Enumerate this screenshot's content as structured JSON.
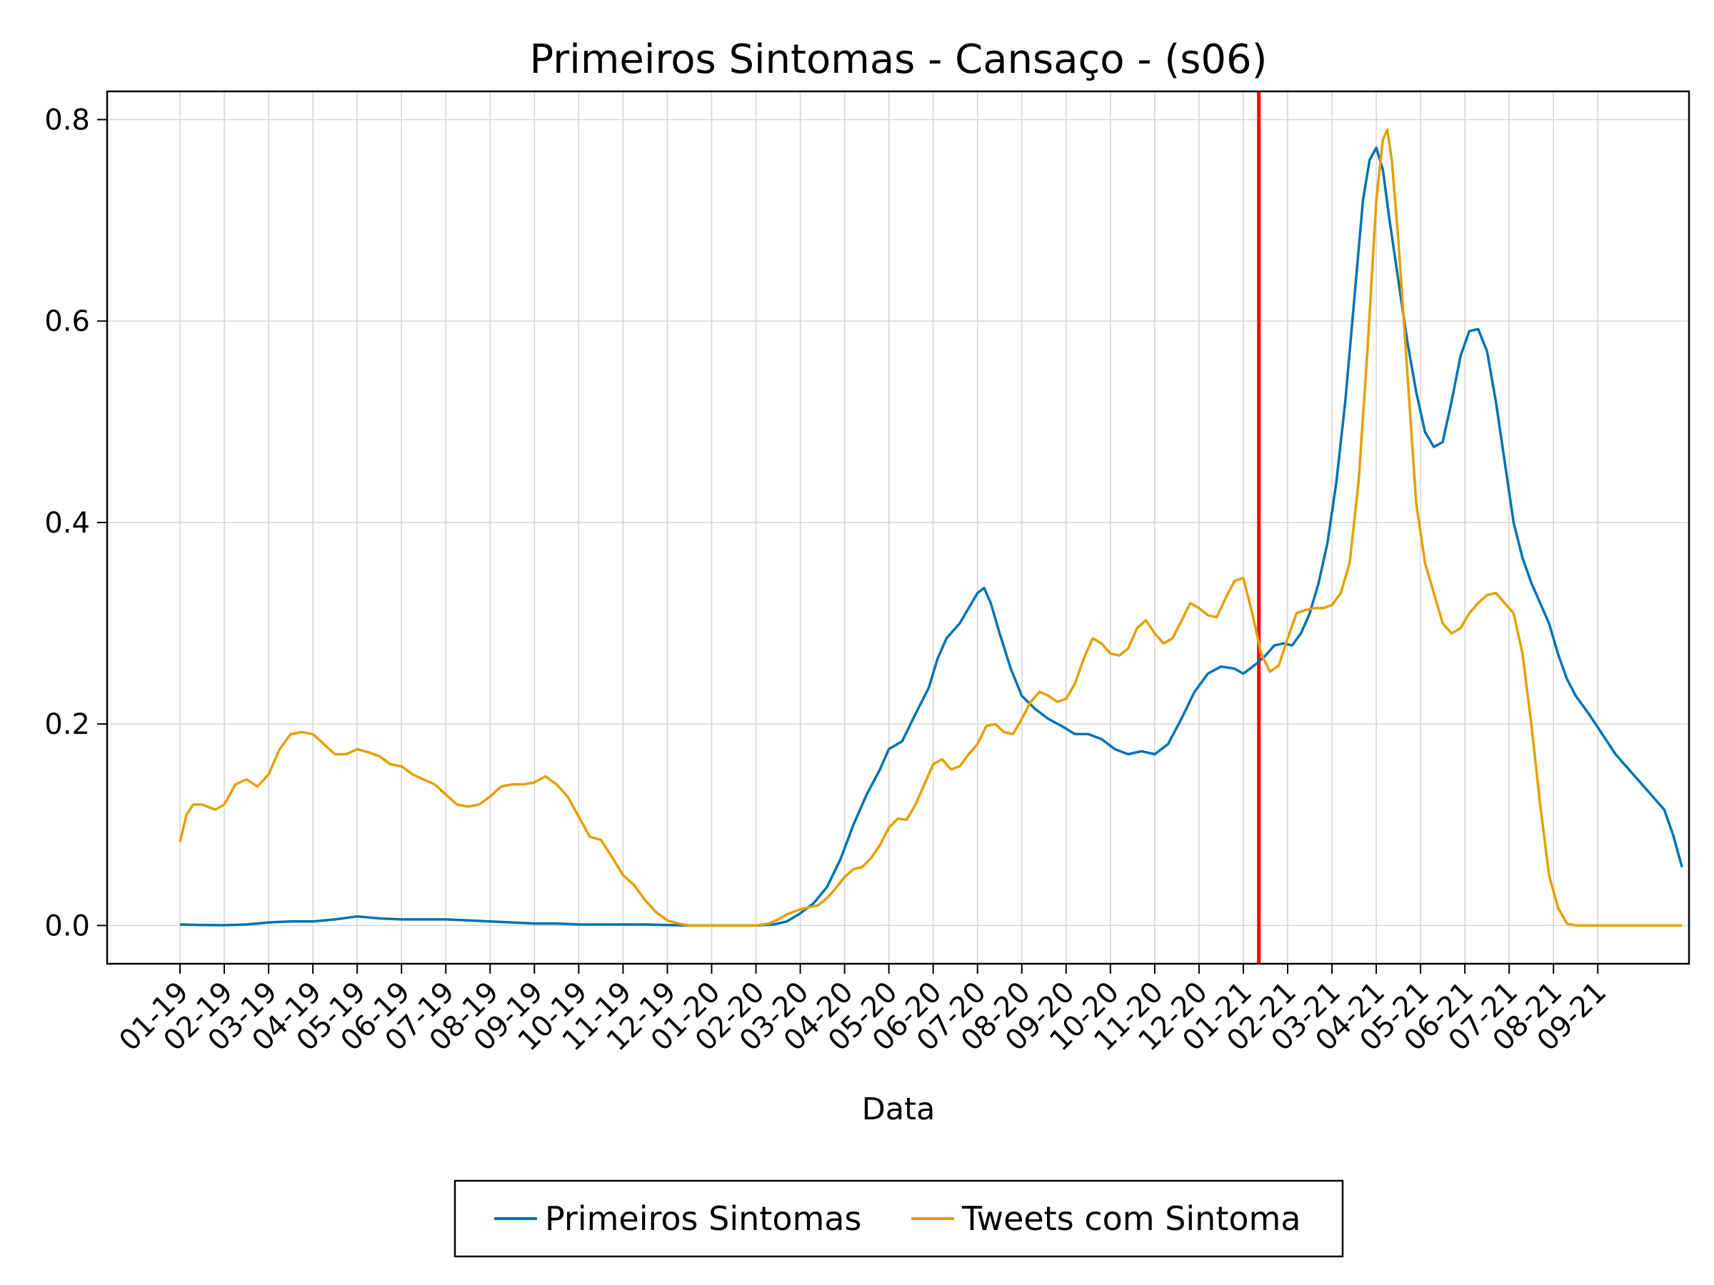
{
  "chart_data": {
    "type": "line",
    "title": "Primeiros Sintomas - Cansaço - (s06)",
    "xlabel": "Data",
    "ylabel": "",
    "x_tick_labels": [
      "01-19",
      "02-19",
      "03-19",
      "04-19",
      "05-19",
      "06-19",
      "07-19",
      "08-19",
      "09-19",
      "10-19",
      "11-19",
      "12-19",
      "01-20",
      "02-20",
      "03-20",
      "04-20",
      "05-20",
      "06-20",
      "07-20",
      "08-20",
      "09-20",
      "10-20",
      "11-20",
      "12-20",
      "01-21",
      "02-21",
      "03-21",
      "04-21",
      "05-21",
      "06-21",
      "07-21",
      "08-21",
      "09-21"
    ],
    "y_ticks": [
      "0.0",
      "0.2",
      "0.4",
      "0.6",
      "0.8"
    ],
    "ylim": [
      -0.038,
      0.828
    ],
    "grid": true,
    "legend_position": "bottom-center",
    "reference_line": {
      "x_month_index": 24.35,
      "color": "#ff0000"
    },
    "series": [
      {
        "name": "Primeiros Sintomas",
        "color": "#0072b2",
        "points": [
          [
            0.0,
            0.001
          ],
          [
            0.5,
            0.0005
          ],
          [
            1.0,
            0.0003
          ],
          [
            1.5,
            0.001
          ],
          [
            2.0,
            0.003
          ],
          [
            2.5,
            0.004
          ],
          [
            3.0,
            0.004
          ],
          [
            3.5,
            0.006
          ],
          [
            4.0,
            0.009
          ],
          [
            4.5,
            0.007
          ],
          [
            5.0,
            0.006
          ],
          [
            5.5,
            0.006
          ],
          [
            6.0,
            0.006
          ],
          [
            6.5,
            0.005
          ],
          [
            7.0,
            0.004
          ],
          [
            7.5,
            0.003
          ],
          [
            8.0,
            0.002
          ],
          [
            8.5,
            0.002
          ],
          [
            9.0,
            0.001
          ],
          [
            9.5,
            0.001
          ],
          [
            10.0,
            0.001
          ],
          [
            10.5,
            0.001
          ],
          [
            11.0,
            0.0005
          ],
          [
            11.5,
            0.0
          ],
          [
            12.0,
            0.0
          ],
          [
            12.5,
            0.0
          ],
          [
            13.0,
            0.0
          ],
          [
            13.4,
            0.001
          ],
          [
            13.7,
            0.004
          ],
          [
            14.0,
            0.012
          ],
          [
            14.3,
            0.022
          ],
          [
            14.6,
            0.038
          ],
          [
            14.9,
            0.065
          ],
          [
            15.2,
            0.1
          ],
          [
            15.5,
            0.13
          ],
          [
            15.8,
            0.155
          ],
          [
            16.0,
            0.175
          ],
          [
            16.3,
            0.183
          ],
          [
            16.6,
            0.21
          ],
          [
            16.9,
            0.236
          ],
          [
            17.1,
            0.265
          ],
          [
            17.3,
            0.285
          ],
          [
            17.6,
            0.3
          ],
          [
            17.8,
            0.315
          ],
          [
            18.0,
            0.33
          ],
          [
            18.15,
            0.335
          ],
          [
            18.3,
            0.32
          ],
          [
            18.5,
            0.29
          ],
          [
            18.75,
            0.255
          ],
          [
            19.0,
            0.228
          ],
          [
            19.3,
            0.215
          ],
          [
            19.6,
            0.205
          ],
          [
            19.9,
            0.198
          ],
          [
            20.2,
            0.19
          ],
          [
            20.5,
            0.19
          ],
          [
            20.8,
            0.185
          ],
          [
            21.1,
            0.175
          ],
          [
            21.4,
            0.17
          ],
          [
            21.7,
            0.173
          ],
          [
            22.0,
            0.17
          ],
          [
            22.3,
            0.18
          ],
          [
            22.6,
            0.205
          ],
          [
            22.9,
            0.232
          ],
          [
            23.2,
            0.25
          ],
          [
            23.5,
            0.257
          ],
          [
            23.8,
            0.255
          ],
          [
            24.0,
            0.25
          ],
          [
            24.3,
            0.26
          ],
          [
            24.5,
            0.268
          ],
          [
            24.7,
            0.278
          ],
          [
            24.9,
            0.28
          ],
          [
            25.1,
            0.278
          ],
          [
            25.3,
            0.29
          ],
          [
            25.5,
            0.31
          ],
          [
            25.7,
            0.34
          ],
          [
            25.9,
            0.38
          ],
          [
            26.1,
            0.44
          ],
          [
            26.3,
            0.52
          ],
          [
            26.5,
            0.62
          ],
          [
            26.7,
            0.72
          ],
          [
            26.85,
            0.76
          ],
          [
            27.0,
            0.772
          ],
          [
            27.15,
            0.75
          ],
          [
            27.3,
            0.7
          ],
          [
            27.5,
            0.64
          ],
          [
            27.7,
            0.58
          ],
          [
            27.9,
            0.53
          ],
          [
            28.1,
            0.49
          ],
          [
            28.3,
            0.475
          ],
          [
            28.5,
            0.48
          ],
          [
            28.7,
            0.52
          ],
          [
            28.9,
            0.565
          ],
          [
            29.1,
            0.59
          ],
          [
            29.3,
            0.592
          ],
          [
            29.5,
            0.57
          ],
          [
            29.7,
            0.52
          ],
          [
            29.9,
            0.46
          ],
          [
            30.1,
            0.4
          ],
          [
            30.3,
            0.365
          ],
          [
            30.5,
            0.34
          ],
          [
            30.7,
            0.32
          ],
          [
            30.9,
            0.3
          ],
          [
            31.1,
            0.27
          ],
          [
            31.3,
            0.245
          ],
          [
            31.5,
            0.228
          ],
          [
            31.8,
            0.21
          ],
          [
            32.1,
            0.19
          ],
          [
            32.4,
            0.17
          ],
          [
            32.7,
            0.155
          ],
          [
            33.0,
            0.14
          ],
          [
            33.3,
            0.125
          ],
          [
            33.5,
            0.115
          ],
          [
            33.7,
            0.09
          ],
          [
            33.9,
            0.058
          ]
        ]
      },
      {
        "name": "Tweets com Sintoma",
        "color": "#e69f00",
        "points": [
          [
            0.0,
            0.083
          ],
          [
            0.15,
            0.11
          ],
          [
            0.3,
            0.12
          ],
          [
            0.5,
            0.12
          ],
          [
            0.8,
            0.115
          ],
          [
            1.0,
            0.12
          ],
          [
            1.25,
            0.14
          ],
          [
            1.5,
            0.145
          ],
          [
            1.75,
            0.138
          ],
          [
            2.0,
            0.15
          ],
          [
            2.25,
            0.175
          ],
          [
            2.5,
            0.19
          ],
          [
            2.75,
            0.192
          ],
          [
            3.0,
            0.19
          ],
          [
            3.25,
            0.18
          ],
          [
            3.5,
            0.17
          ],
          [
            3.75,
            0.17
          ],
          [
            4.0,
            0.175
          ],
          [
            4.25,
            0.172
          ],
          [
            4.5,
            0.168
          ],
          [
            4.75,
            0.16
          ],
          [
            5.0,
            0.158
          ],
          [
            5.25,
            0.15
          ],
          [
            5.5,
            0.145
          ],
          [
            5.75,
            0.14
          ],
          [
            6.0,
            0.13
          ],
          [
            6.25,
            0.12
          ],
          [
            6.5,
            0.118
          ],
          [
            6.75,
            0.12
          ],
          [
            7.0,
            0.128
          ],
          [
            7.25,
            0.138
          ],
          [
            7.5,
            0.14
          ],
          [
            7.75,
            0.14
          ],
          [
            8.0,
            0.142
          ],
          [
            8.25,
            0.148
          ],
          [
            8.5,
            0.14
          ],
          [
            8.75,
            0.128
          ],
          [
            9.0,
            0.108
          ],
          [
            9.25,
            0.088
          ],
          [
            9.5,
            0.085
          ],
          [
            9.75,
            0.068
          ],
          [
            10.0,
            0.05
          ],
          [
            10.25,
            0.04
          ],
          [
            10.5,
            0.025
          ],
          [
            10.75,
            0.013
          ],
          [
            11.0,
            0.005
          ],
          [
            11.25,
            0.002
          ],
          [
            11.5,
            0.0
          ],
          [
            12.0,
            0.0
          ],
          [
            12.5,
            0.0
          ],
          [
            13.0,
            0.0
          ],
          [
            13.3,
            0.002
          ],
          [
            13.5,
            0.006
          ],
          [
            13.7,
            0.011
          ],
          [
            14.0,
            0.016
          ],
          [
            14.2,
            0.018
          ],
          [
            14.4,
            0.02
          ],
          [
            14.6,
            0.027
          ],
          [
            14.8,
            0.037
          ],
          [
            15.0,
            0.048
          ],
          [
            15.2,
            0.056
          ],
          [
            15.4,
            0.058
          ],
          [
            15.6,
            0.067
          ],
          [
            15.8,
            0.08
          ],
          [
            16.0,
            0.097
          ],
          [
            16.2,
            0.106
          ],
          [
            16.4,
            0.105
          ],
          [
            16.6,
            0.12
          ],
          [
            16.8,
            0.14
          ],
          [
            17.0,
            0.16
          ],
          [
            17.2,
            0.165
          ],
          [
            17.4,
            0.155
          ],
          [
            17.6,
            0.158
          ],
          [
            17.8,
            0.17
          ],
          [
            18.0,
            0.18
          ],
          [
            18.2,
            0.198
          ],
          [
            18.4,
            0.2
          ],
          [
            18.6,
            0.192
          ],
          [
            18.8,
            0.19
          ],
          [
            19.0,
            0.205
          ],
          [
            19.2,
            0.222
          ],
          [
            19.4,
            0.232
          ],
          [
            19.6,
            0.228
          ],
          [
            19.8,
            0.222
          ],
          [
            20.0,
            0.225
          ],
          [
            20.2,
            0.24
          ],
          [
            20.4,
            0.265
          ],
          [
            20.6,
            0.285
          ],
          [
            20.8,
            0.28
          ],
          [
            21.0,
            0.27
          ],
          [
            21.2,
            0.268
          ],
          [
            21.4,
            0.275
          ],
          [
            21.6,
            0.295
          ],
          [
            21.8,
            0.303
          ],
          [
            22.0,
            0.29
          ],
          [
            22.2,
            0.28
          ],
          [
            22.4,
            0.285
          ],
          [
            22.6,
            0.302
          ],
          [
            22.8,
            0.32
          ],
          [
            23.0,
            0.315
          ],
          [
            23.2,
            0.308
          ],
          [
            23.4,
            0.306
          ],
          [
            23.6,
            0.325
          ],
          [
            23.8,
            0.342
          ],
          [
            24.0,
            0.345
          ],
          [
            24.2,
            0.31
          ],
          [
            24.4,
            0.27
          ],
          [
            24.6,
            0.252
          ],
          [
            24.8,
            0.258
          ],
          [
            25.0,
            0.285
          ],
          [
            25.2,
            0.31
          ],
          [
            25.4,
            0.313
          ],
          [
            25.6,
            0.315
          ],
          [
            25.8,
            0.315
          ],
          [
            26.0,
            0.318
          ],
          [
            26.2,
            0.33
          ],
          [
            26.4,
            0.36
          ],
          [
            26.6,
            0.44
          ],
          [
            26.8,
            0.57
          ],
          [
            27.0,
            0.72
          ],
          [
            27.15,
            0.78
          ],
          [
            27.25,
            0.79
          ],
          [
            27.35,
            0.76
          ],
          [
            27.5,
            0.68
          ],
          [
            27.7,
            0.55
          ],
          [
            27.9,
            0.42
          ],
          [
            28.1,
            0.36
          ],
          [
            28.3,
            0.33
          ],
          [
            28.5,
            0.3
          ],
          [
            28.7,
            0.29
          ],
          [
            28.9,
            0.295
          ],
          [
            29.1,
            0.31
          ],
          [
            29.3,
            0.32
          ],
          [
            29.5,
            0.328
          ],
          [
            29.7,
            0.33
          ],
          [
            29.9,
            0.32
          ],
          [
            30.1,
            0.31
          ],
          [
            30.3,
            0.27
          ],
          [
            30.5,
            0.2
          ],
          [
            30.7,
            0.12
          ],
          [
            30.9,
            0.05
          ],
          [
            31.1,
            0.018
          ],
          [
            31.3,
            0.002
          ],
          [
            31.5,
            0.0
          ],
          [
            32.0,
            0.0
          ],
          [
            32.5,
            0.0
          ],
          [
            33.0,
            0.0
          ],
          [
            33.5,
            0.0
          ],
          [
            33.9,
            0.0
          ]
        ]
      }
    ]
  }
}
